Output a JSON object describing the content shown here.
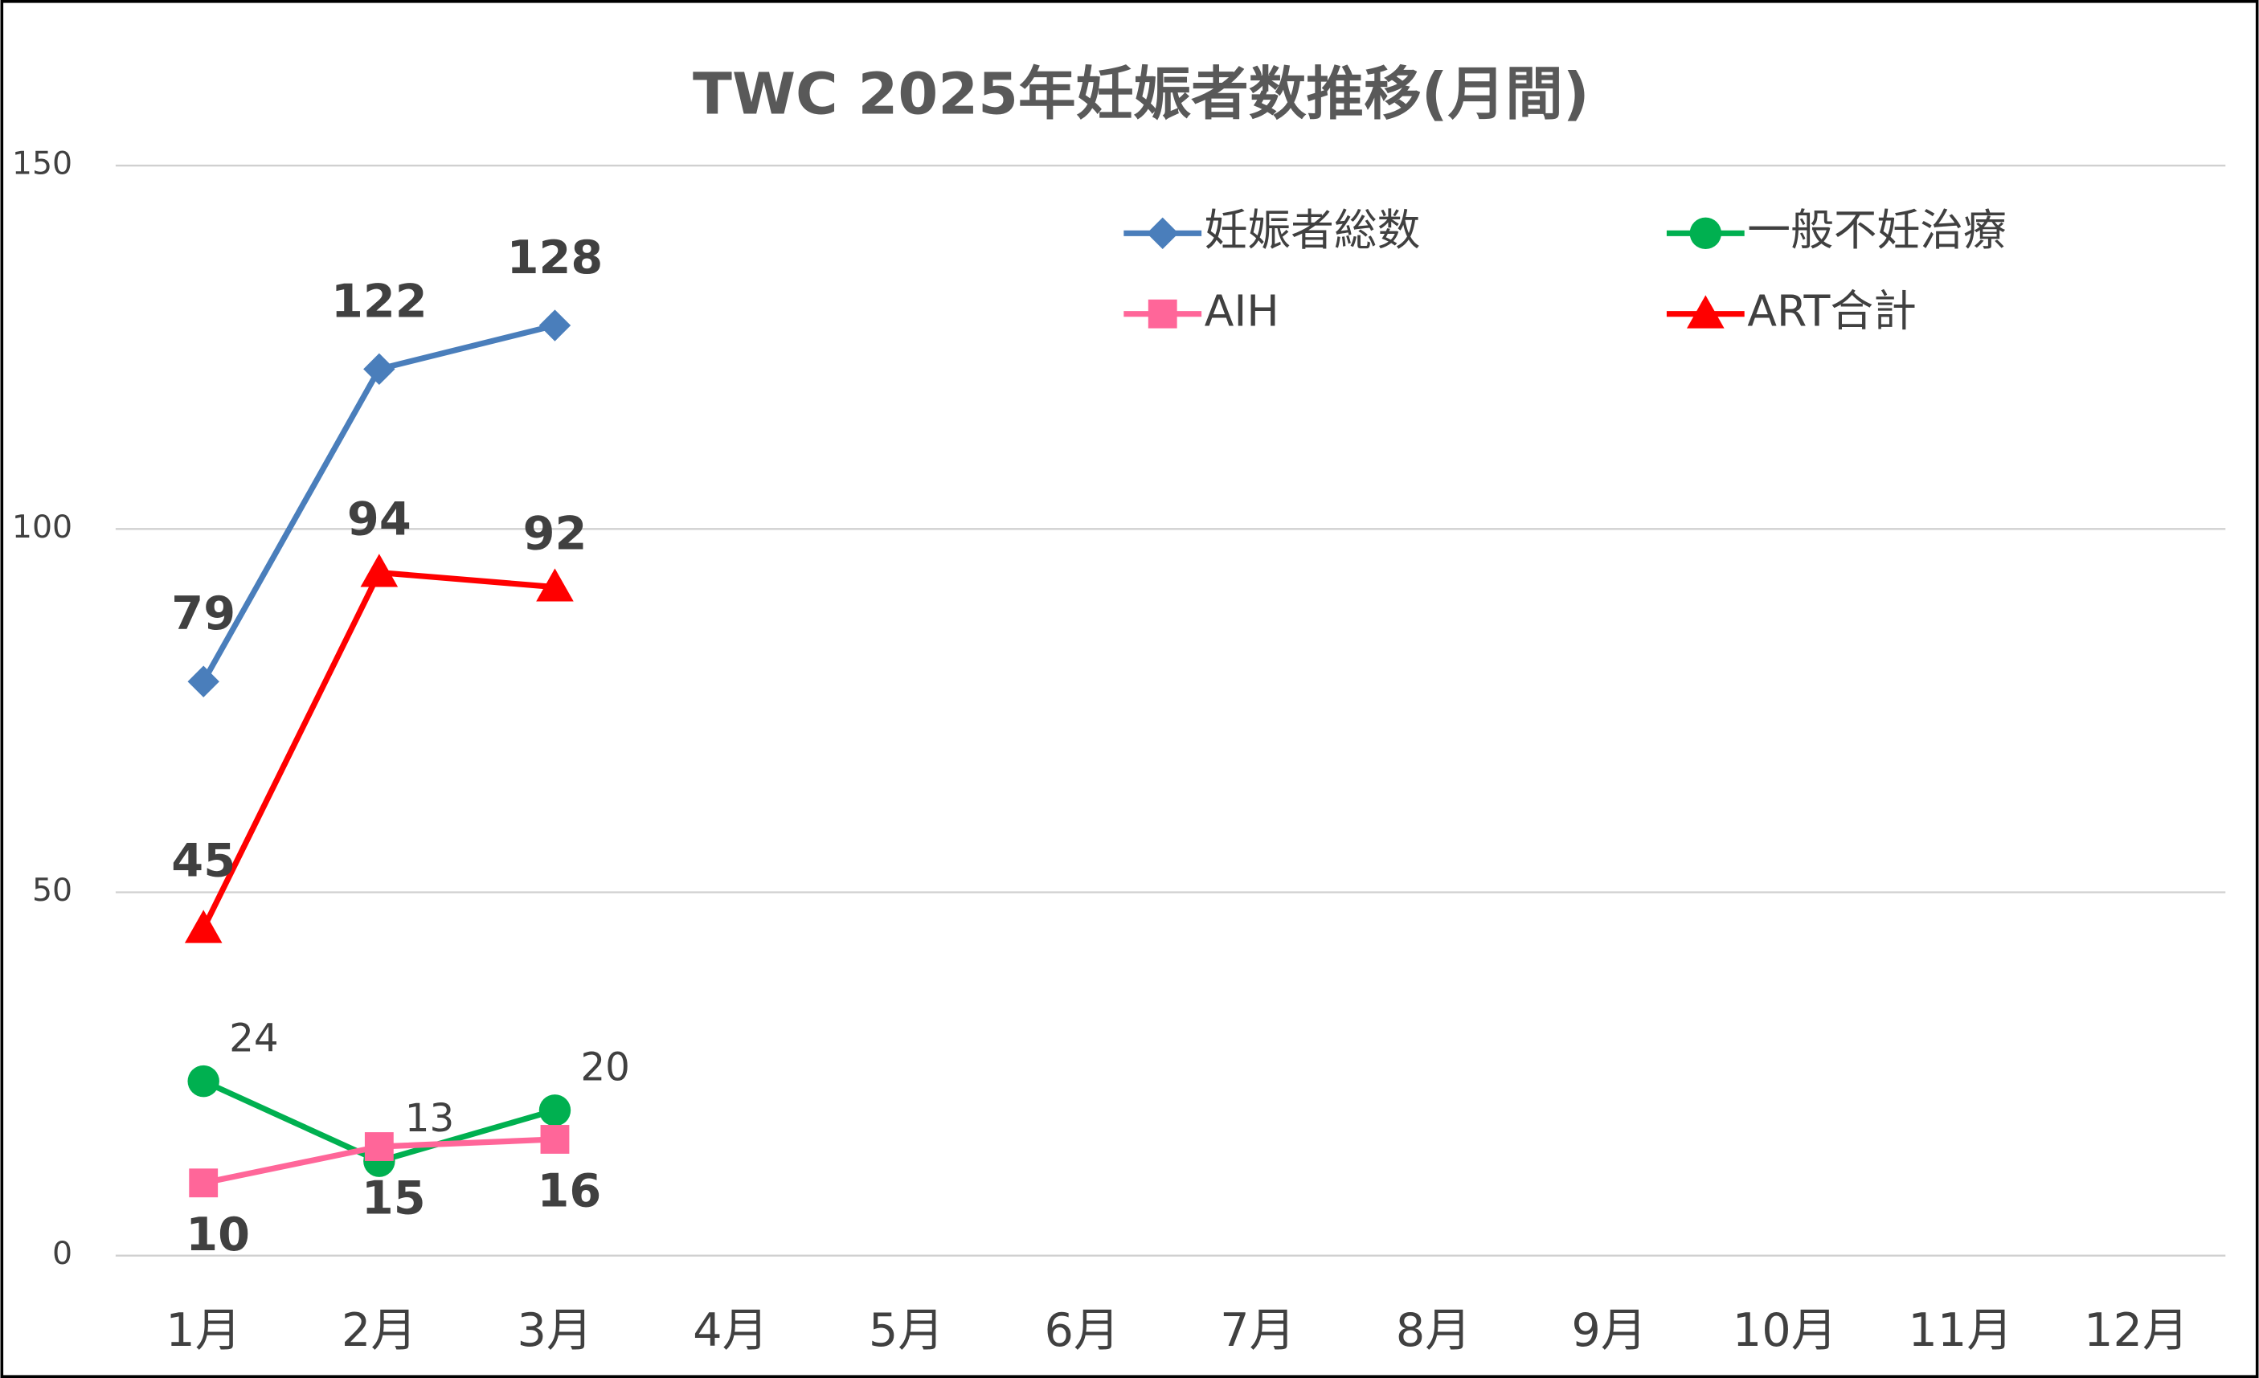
{
  "chart_data": {
    "type": "line",
    "title": "TWC 2025年妊娠者数推移(月間)",
    "categories": [
      "1月",
      "2月",
      "3月",
      "4月",
      "5月",
      "6月",
      "7月",
      "8月",
      "9月",
      "10月",
      "11月",
      "12月"
    ],
    "series": [
      {
        "name": "妊娠者総数",
        "color": "#4a7ebb",
        "marker": "diamond",
        "label_position": "above",
        "values": [
          79,
          122,
          128,
          null,
          null,
          null,
          null,
          null,
          null,
          null,
          null,
          null
        ]
      },
      {
        "name": "一般不妊治療",
        "color": "#00b050",
        "marker": "circle",
        "label_position": "upper-right",
        "values": [
          24,
          13,
          20,
          null,
          null,
          null,
          null,
          null,
          null,
          null,
          null,
          null
        ]
      },
      {
        "name": "AIH",
        "color": "#ff6699",
        "marker": "square",
        "label_position": "below",
        "values": [
          10,
          15,
          16,
          null,
          null,
          null,
          null,
          null,
          null,
          null,
          null,
          null
        ]
      },
      {
        "name": "ART合計",
        "color": "#ff0000",
        "marker": "triangle",
        "label_position": "above",
        "values": [
          45,
          94,
          92,
          null,
          null,
          null,
          null,
          null,
          null,
          null,
          null,
          null
        ]
      }
    ],
    "ylim": [
      0,
      150
    ],
    "yticks": [
      0,
      50,
      100,
      150
    ],
    "grid": true,
    "legend": "top-right"
  }
}
